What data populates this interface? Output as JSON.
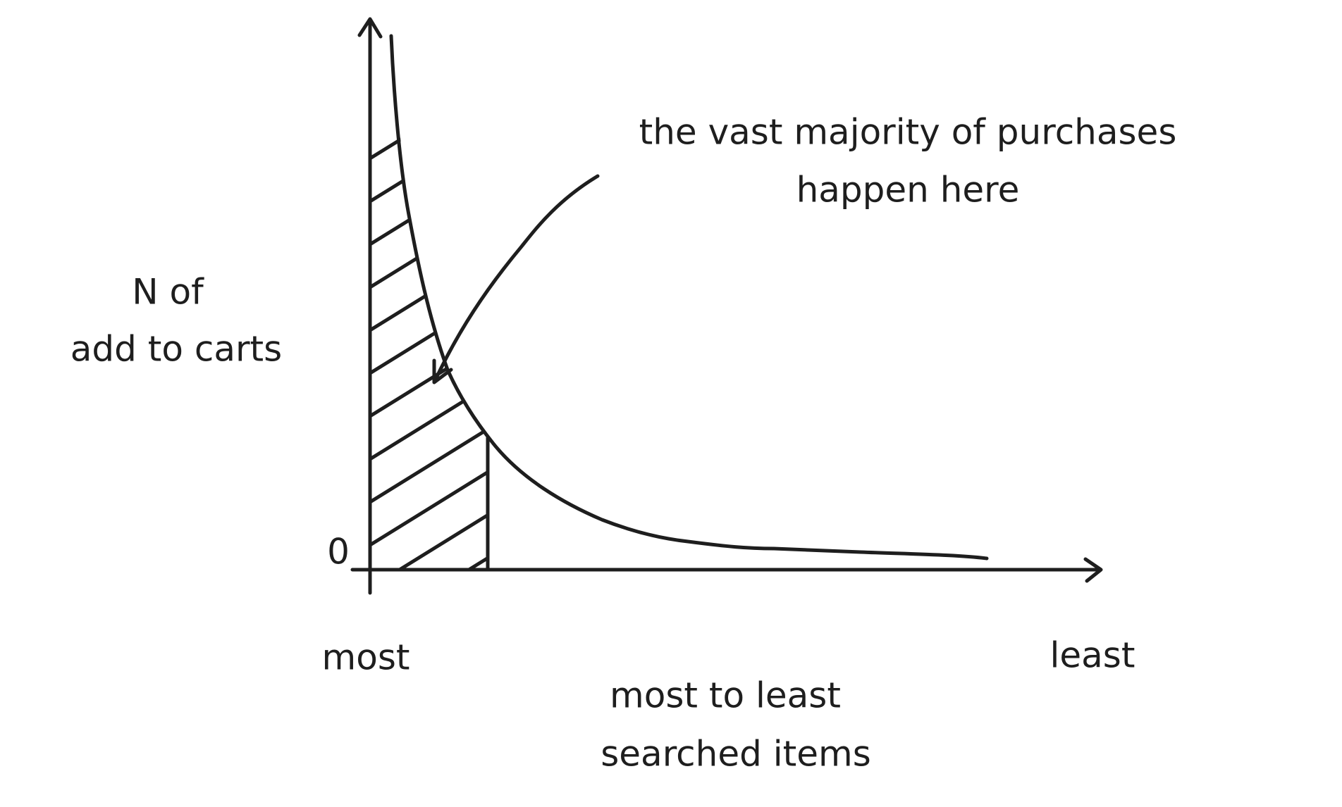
{
  "annotation": {
    "lines": [
      "the vast majority of purchases",
      "happen here"
    ]
  },
  "y_axis": {
    "label_lines": [
      "N of",
      "add to carts"
    ],
    "origin_label": "0"
  },
  "x_axis": {
    "start_label": "most",
    "end_label": "least",
    "label_lines": [
      "most to least",
      "searched items"
    ]
  }
}
